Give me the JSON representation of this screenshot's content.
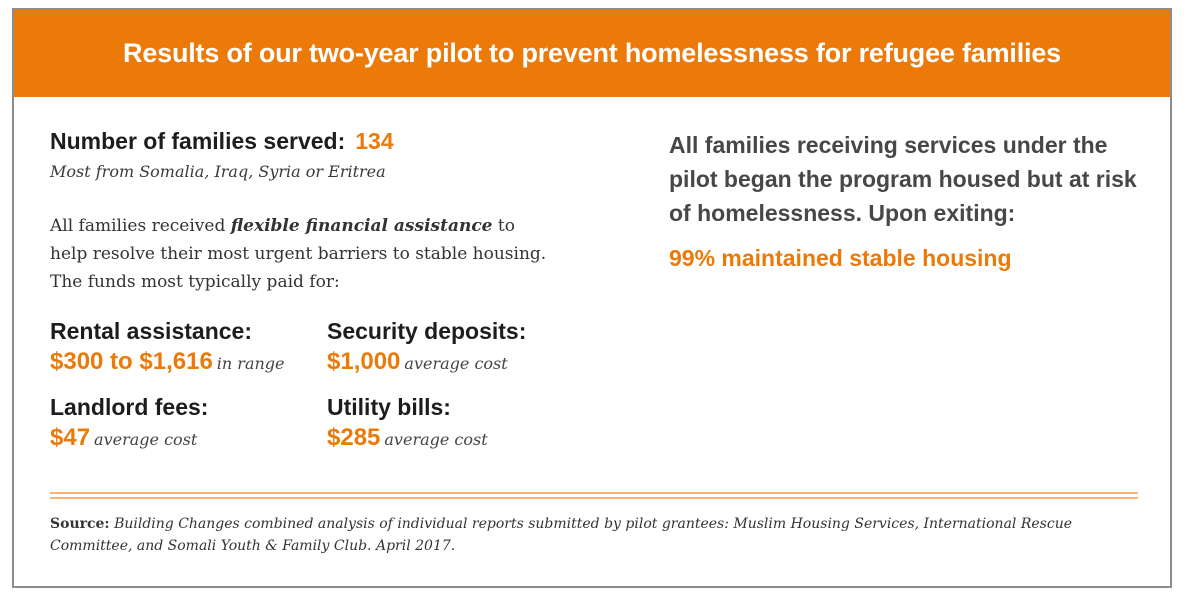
{
  "banner": {
    "title": "Results of our two-year pilot to prevent homelessness for refugee families"
  },
  "left": {
    "served_label": "Number of families served:",
    "served_value": "134",
    "origin_note": "Most from Somalia, Iraq, Syria or Eritrea",
    "desc_part1": "All families received ",
    "desc_emphasis": "flexible financial assistance",
    "desc_part2": " to help resolve their most urgent barriers to stable housing. The funds most typically paid for:",
    "costs": [
      {
        "label": "Rental assistance:",
        "value": "$300 to $1,616",
        "note": "in range"
      },
      {
        "label": "Security deposits:",
        "value": "$1,000",
        "note": "average cost"
      },
      {
        "label": "Landlord fees:",
        "value": "$47",
        "note": "average cost"
      },
      {
        "label": "Utility bills:",
        "value": "$285",
        "note": "average cost"
      }
    ]
  },
  "right": {
    "statement": "All families receiving services under the pilot began the program housed but at risk of homelessness. Upon exiting:",
    "outcome": "99% maintained stable housing"
  },
  "footer": {
    "source_label": "Source:",
    "source_text": "Building Changes combined analysis of individual reports submitted by pilot grantees: Muslim Housing Services, International Rescue Committee, and Somali Youth & Family Club. April 2017."
  },
  "colors": {
    "accent": "#ec7a08",
    "heading_dark": "#1d1d1d",
    "heading_grey": "#474747"
  }
}
